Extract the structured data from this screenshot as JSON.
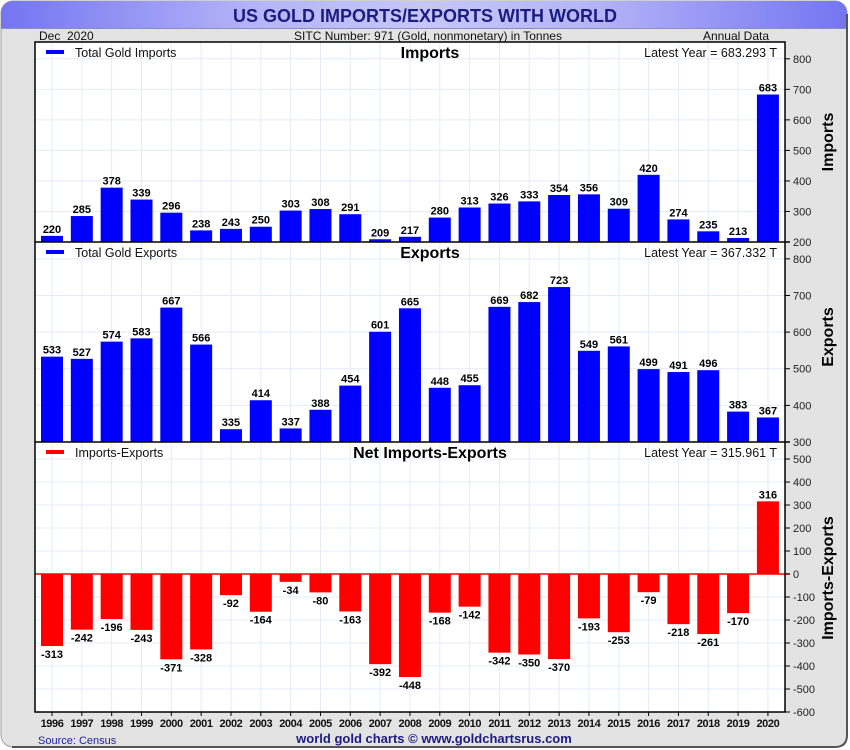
{
  "header": {
    "title": "US GOLD IMPORTS/EXPORTS WITH WORLD",
    "date": "Dec  2020",
    "subtitle": "SITC Number: 971 (Gold, nonmonetary) in Tonnes",
    "frequency": "Annual Data"
  },
  "footer": {
    "source": "Source: Census",
    "credit": "world gold charts © www.goldchartsrus.com"
  },
  "colors": {
    "title_text": "#1c1c80",
    "title_bar_edge": "#7474f2",
    "title_bar_center": "#c6c6fa",
    "frame_background": "#e3e3e3",
    "grid": "#e2ecf7",
    "imports": "#0000ff",
    "exports": "#0000ff",
    "net": "#ff0000"
  },
  "chart_data": [
    {
      "type": "bar",
      "title": "Imports",
      "legend": "Total Gold Imports",
      "legend_position": "top-left",
      "latest": "Latest Year = 683.293 T",
      "ylabel": "Imports",
      "xlabel": "",
      "color": "#0000ff",
      "grid": true,
      "ylim": [
        200,
        855
      ],
      "yticks": [
        200,
        300,
        400,
        500,
        600,
        700,
        800
      ],
      "categories": [
        "1996",
        "1997",
        "1998",
        "1999",
        "2000",
        "2001",
        "2002",
        "2003",
        "2004",
        "2005",
        "2006",
        "2007",
        "2008",
        "2009",
        "2010",
        "2011",
        "2012",
        "2013",
        "2014",
        "2015",
        "2016",
        "2017",
        "2018",
        "2019",
        "2020"
      ],
      "values": [
        220,
        285,
        378,
        339,
        296,
        238,
        243,
        250,
        303,
        308,
        291,
        209,
        217,
        280,
        313,
        326,
        333,
        354,
        356,
        309,
        420,
        274,
        235,
        213,
        683
      ]
    },
    {
      "type": "bar",
      "title": "Exports",
      "legend": "Total Gold Exports",
      "legend_position": "top-left",
      "latest": "Latest Year = 367.332 T",
      "ylabel": "Exports",
      "xlabel": "",
      "color": "#0000ff",
      "grid": true,
      "ylim": [
        300,
        846
      ],
      "yticks": [
        300,
        400,
        500,
        600,
        700,
        800
      ],
      "categories": [
        "1996",
        "1997",
        "1998",
        "1999",
        "2000",
        "2001",
        "2002",
        "2003",
        "2004",
        "2005",
        "2006",
        "2007",
        "2008",
        "2009",
        "2010",
        "2011",
        "2012",
        "2013",
        "2014",
        "2015",
        "2016",
        "2017",
        "2018",
        "2019",
        "2020"
      ],
      "values": [
        533,
        527,
        574,
        583,
        667,
        566,
        335,
        414,
        337,
        388,
        454,
        601,
        665,
        448,
        455,
        669,
        682,
        723,
        549,
        561,
        499,
        491,
        496,
        383,
        367
      ]
    },
    {
      "type": "bar",
      "title": "Net Imports-Exports",
      "legend": "Imports-Exports",
      "legend_position": "top-left",
      "latest": "Latest Year = 315.961 T",
      "ylabel": "Imports-Exports",
      "xlabel": "",
      "color": "#ff0000",
      "grid": true,
      "ylim": [
        -600,
        574
      ],
      "yticks": [
        500,
        400,
        300,
        200,
        100,
        0,
        -100,
        -200,
        -300,
        -400,
        -500,
        -600
      ],
      "categories": [
        "1996",
        "1997",
        "1998",
        "1999",
        "2000",
        "2001",
        "2002",
        "2003",
        "2004",
        "2005",
        "2006",
        "2007",
        "2008",
        "2009",
        "2010",
        "2011",
        "2012",
        "2013",
        "2014",
        "2015",
        "2016",
        "2017",
        "2018",
        "2019",
        "2020"
      ],
      "values": [
        -313,
        -242,
        -196,
        -243,
        -371,
        -328,
        -92,
        -164,
        -34,
        -80,
        -163,
        -392,
        -448,
        -168,
        -142,
        -342,
        -350,
        -370,
        -193,
        -253,
        -79,
        -218,
        -261,
        -170,
        316
      ]
    }
  ]
}
